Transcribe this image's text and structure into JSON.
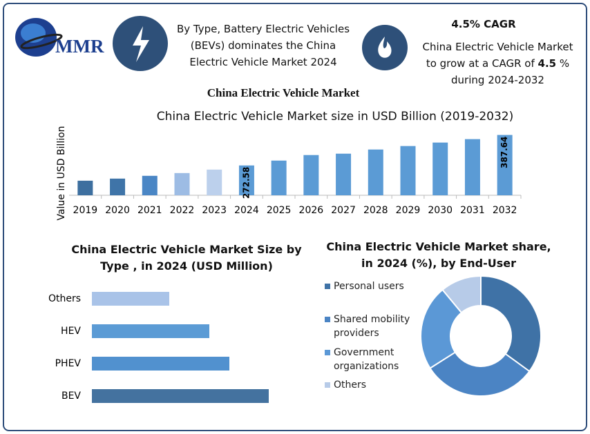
{
  "header": {
    "logo": "MMR",
    "type_note": "By Type, Battery Electric Vehicles (BEVs) dominates the China Electric Vehicle Market 2024",
    "cagr_title": "4.5% CAGR",
    "cagr_text_before": "China Electric Vehicle Market to grow at a CAGR of",
    "cagr_value": "4.5",
    "cagr_text_after": "% during 2024-2032"
  },
  "title": "China Electric Vehicle Market",
  "chart_data": [
    {
      "type": "bar",
      "title": "China Electric Vehicle Market size in USD Billion (2019-2032)",
      "y_label": "Value in USD  Billion",
      "categories": [
        "2019",
        "2020",
        "2021",
        "2022",
        "2023",
        "2024",
        "2025",
        "2026",
        "2027",
        "2028",
        "2029",
        "2030",
        "2031",
        "2032"
      ],
      "values": [
        215.0,
        222.9,
        233.4,
        243.8,
        256.9,
        272.58,
        290.9,
        311.8,
        317.0,
        332.7,
        345.8,
        358.9,
        371.9,
        387.64
      ],
      "value_labels": [
        null,
        null,
        null,
        null,
        null,
        "272.58",
        null,
        null,
        null,
        null,
        null,
        null,
        null,
        "387.64"
      ],
      "colors": [
        "#3d6f9f",
        "#3f74a8",
        "#4a86c5",
        "#9dbce4",
        "#bcd0ec",
        "#5b9bd5",
        "#5b9bd5",
        "#5b9bd5",
        "#5b9bd5",
        "#5b9bd5",
        "#5b9bd5",
        "#5b9bd5",
        "#5b9bd5",
        "#5b9bd5"
      ],
      "ylim": [
        160,
        410
      ]
    },
    {
      "type": "barh",
      "title": "China Electric Vehicle Market Size by Type , in 2024 (USD Million)",
      "categories": [
        "Others",
        "HEV",
        "PHEV",
        "BEV"
      ],
      "values": [
        112,
        170,
        199,
        256
      ],
      "colors": [
        "#a9c3e8",
        "#5b9bd5",
        "#5191cf",
        "#44729f"
      ],
      "xlim": [
        0,
        300
      ]
    },
    {
      "type": "donut",
      "title": "China Electric Vehicle Market share, in 2024 (%), by End-User",
      "categories": [
        "Personal users",
        "Shared mobility providers",
        "Government organizations",
        "Others"
      ],
      "values": [
        35,
        31,
        23,
        11
      ],
      "colors": [
        "#3f72a6",
        "#4b84c4",
        "#5b98d6",
        "#b7cbe8"
      ]
    }
  ]
}
